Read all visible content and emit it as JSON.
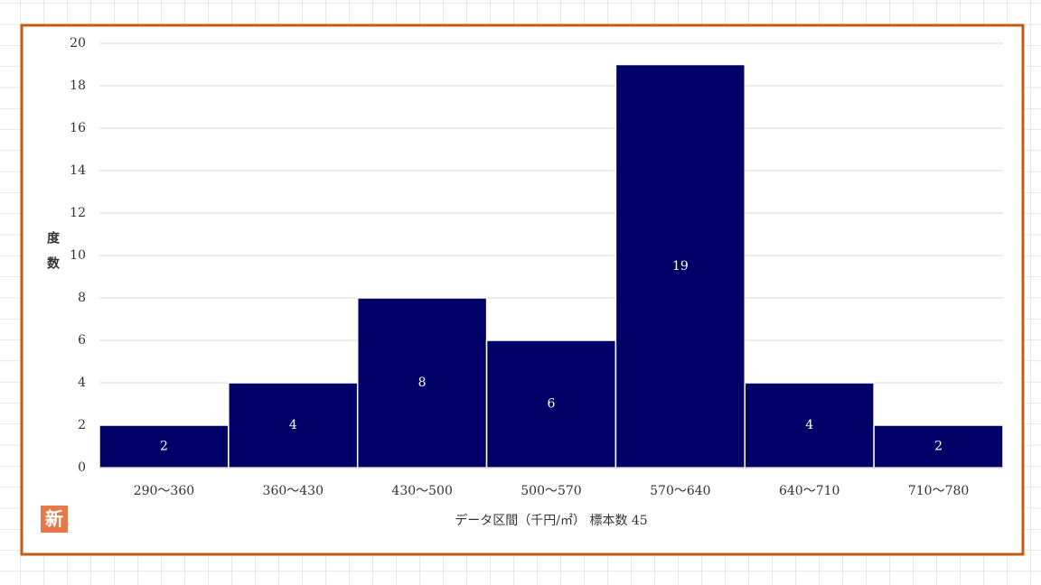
{
  "chart_data": {
    "type": "bar",
    "categories": [
      "290～360",
      "360～430",
      "430～500",
      "500～570",
      "570～640",
      "640～710",
      "710～780"
    ],
    "values": [
      2,
      4,
      8,
      6,
      19,
      4,
      2
    ],
    "color": "#000066",
    "ylabel": "度数",
    "xlabel": "データ区間（千円/㎡） 標本数 45",
    "badge": "新",
    "ylim": [
      0,
      20
    ],
    "yticks": [
      0,
      2,
      4,
      6,
      8,
      10,
      12,
      14,
      16,
      18,
      20
    ],
    "grid": true
  }
}
